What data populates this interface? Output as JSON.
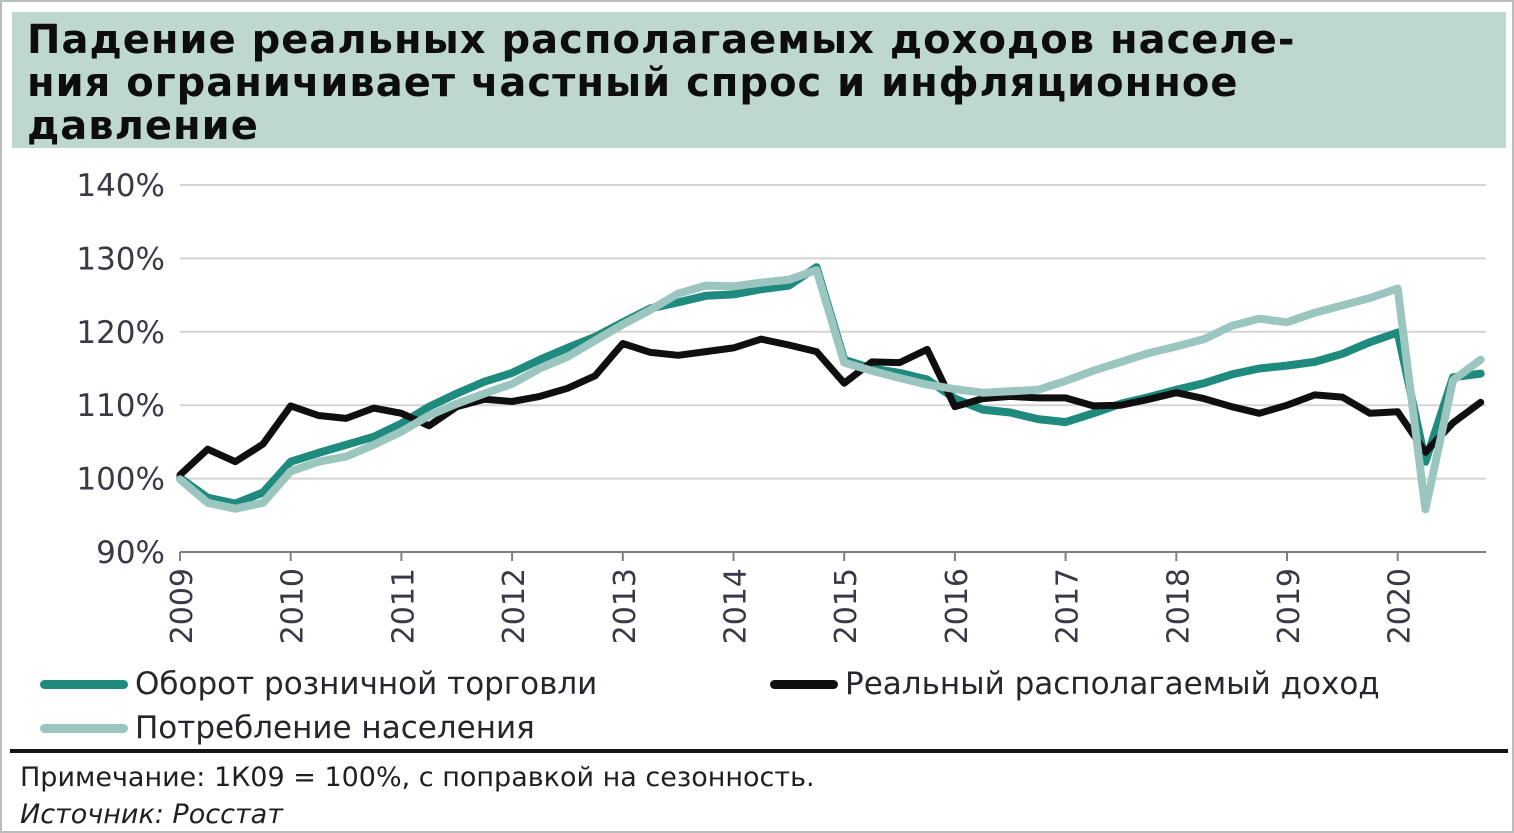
{
  "title": {
    "lines": [
      "Падение реальных располагаемых доходов населе-",
      "ния ограничивает частный спрос и инфляционное",
      "давление"
    ],
    "background_color": "#bed7cf",
    "text_color": "#0d0d0d"
  },
  "chart_data": {
    "type": "line",
    "title": "Падение реальных располагаемых доходов населения ограничивает частный спрос и инфляционное давление",
    "xlabel": "",
    "ylabel": "",
    "x_start": "2009-Q1",
    "x_frequency": "quarterly",
    "points_per_year": 4,
    "x_axis": {
      "tick_labels": [
        "2009",
        "2010",
        "2011",
        "2012",
        "2013",
        "2014",
        "2015",
        "2016",
        "2017",
        "2018",
        "2019",
        "2020"
      ],
      "label_rotation_deg": -90
    },
    "y_axis": {
      "min": 90,
      "max": 140,
      "step": 10,
      "suffix": "%",
      "tick_labels": [
        "140%",
        "130%",
        "120%",
        "110%",
        "100%",
        "90%"
      ]
    },
    "grid": true,
    "legend_position": "bottom",
    "series": [
      {
        "name": "Оборот розничной торговли",
        "color": "#1f8a7e",
        "stroke_width": 8,
        "values": [
          100.1,
          97.4,
          96.6,
          98.1,
          102.3,
          103.5,
          104.6,
          105.7,
          107.5,
          109.8,
          111.6,
          113.2,
          114.4,
          116.2,
          117.8,
          119.3,
          121.3,
          123.2,
          124.0,
          124.9,
          125.1,
          125.8,
          126.3,
          128.8,
          116.2,
          115.0,
          114.4,
          113.5,
          110.9,
          109.4,
          109.0,
          108.1,
          107.7,
          108.9,
          110.2,
          111.1,
          112.1,
          113.0,
          114.2,
          115.0,
          115.4,
          115.9,
          117.0,
          118.6,
          119.9,
          102.3,
          113.8,
          114.3
        ]
      },
      {
        "name": "Реальный располагаемый доход",
        "color": "#0f0f0f",
        "stroke_width": 7,
        "values": [
          100.5,
          104.0,
          102.3,
          104.7,
          109.9,
          108.6,
          108.2,
          109.6,
          108.9,
          107.2,
          109.8,
          110.8,
          110.5,
          111.2,
          112.3,
          114.0,
          118.4,
          117.2,
          116.8,
          117.3,
          117.8,
          119.0,
          118.2,
          117.3,
          113.0,
          115.9,
          115.8,
          117.6,
          109.8,
          110.9,
          111.2,
          111.0,
          111.0,
          109.9,
          110.0,
          110.8,
          111.7,
          110.9,
          109.8,
          108.9,
          110.0,
          111.4,
          111.1,
          108.9,
          109.1,
          103.6,
          107.6,
          110.4
        ]
      },
      {
        "name": "Потребление населения",
        "color": "#9bc6c0",
        "stroke_width": 8,
        "values": [
          99.9,
          96.7,
          95.9,
          96.7,
          101.0,
          102.3,
          103.0,
          104.6,
          106.4,
          108.6,
          110.2,
          111.6,
          112.9,
          115.0,
          116.6,
          118.8,
          121.0,
          123.0,
          125.2,
          126.3,
          126.2,
          126.7,
          127.1,
          128.4,
          115.8,
          114.7,
          113.7,
          112.8,
          112.2,
          111.7,
          111.9,
          112.1,
          113.3,
          114.7,
          115.9,
          117.1,
          118.0,
          119.0,
          120.8,
          121.8,
          121.3,
          122.6,
          123.6,
          124.6,
          125.9,
          95.8,
          113.4,
          116.2
        ]
      }
    ]
  },
  "legend": {
    "items": [
      {
        "label": "Оборот розничной торговли",
        "color": "#1f8a7e"
      },
      {
        "label": "Реальный располагаемый доход",
        "color": "#0f0f0f"
      },
      {
        "label": "Потребление населения",
        "color": "#9bc6c0"
      }
    ]
  },
  "note": "Примечание: 1К09 = 100%, с поправкой на сезонность.",
  "source": "Источник: Росстат",
  "colors": {
    "title_background": "#bed7cf",
    "gridline": "#d4d4d4",
    "axis_line": "#808080",
    "axis_label": "#3a3a47",
    "divider": "#141414",
    "frame_border": "#b9bdbd"
  }
}
